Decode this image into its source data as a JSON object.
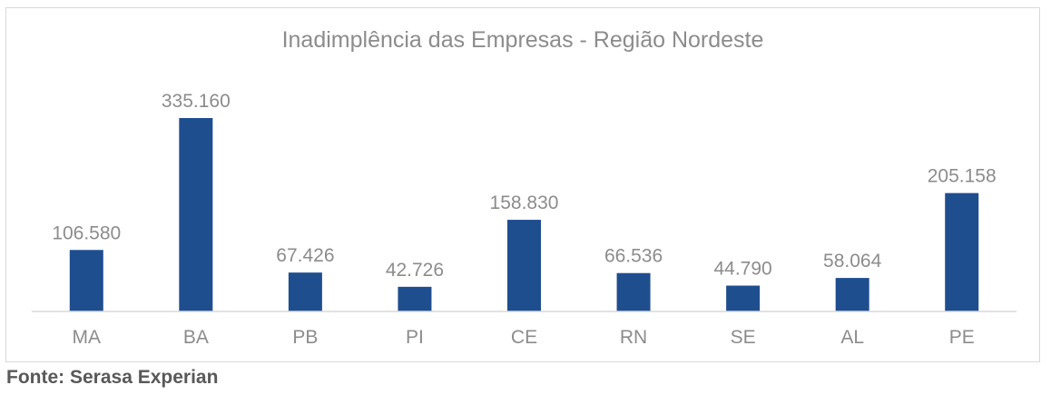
{
  "chart_data": {
    "type": "bar",
    "title": "Inadimplência das Empresas -  Região Nordeste",
    "categories": [
      "MA",
      "BA",
      "PB",
      "PI",
      "CE",
      "RN",
      "SE",
      "AL",
      "PE"
    ],
    "values": [
      106580,
      335160,
      67426,
      42726,
      158830,
      66536,
      44790,
      58064,
      205158
    ],
    "value_labels": [
      "106.580",
      "335.160",
      "67.426",
      "42.726",
      "158.830",
      "66.536",
      "44.790",
      "58.064",
      "205.158"
    ],
    "xlabel": "",
    "ylabel": "",
    "ylim": [
      0,
      335160
    ],
    "grid": false,
    "legend": "none",
    "bar_color": "#1f4e8f",
    "text_color": "#8c8c8c"
  },
  "source_text": "Fonte: Serasa Experian"
}
